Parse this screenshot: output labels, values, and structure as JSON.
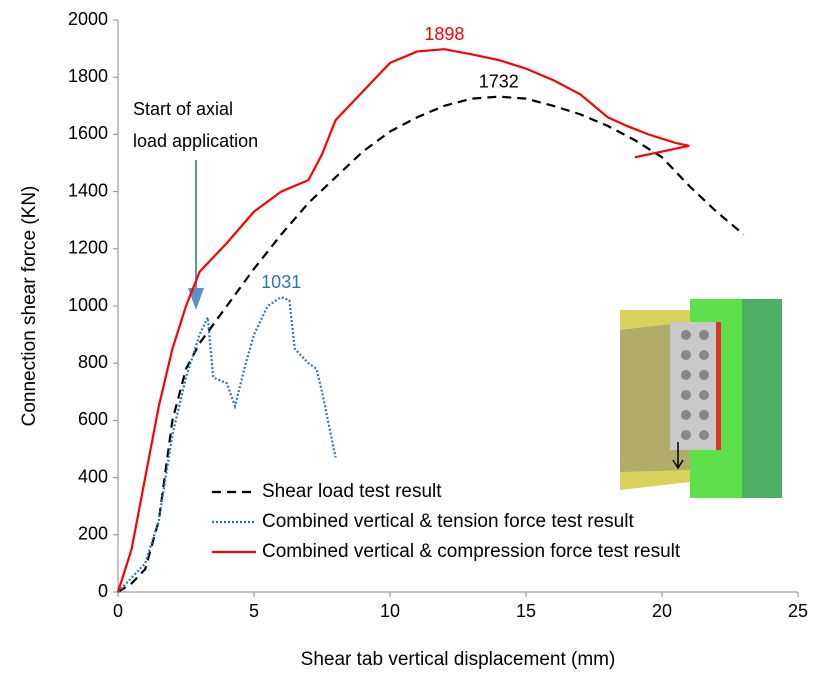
{
  "chart_data": {
    "type": "line",
    "x_label": "Shear tab vertical displacement (mm)",
    "y_label": "Connection shear force (KN)",
    "xlim": [
      0,
      25
    ],
    "xticks": [
      0,
      5,
      10,
      15,
      20,
      25
    ],
    "ylim": [
      0,
      2000
    ],
    "yticks": [
      0,
      200,
      400,
      600,
      800,
      1000,
      1200,
      1400,
      1600,
      1800,
      2000
    ],
    "grid": false,
    "note": [
      "Start of axial",
      "load application"
    ],
    "series": [
      {
        "name": "Shear load test result",
        "color": "#000000",
        "dash": "dashed",
        "peak_label": "1732",
        "x": [
          0,
          0.5,
          1,
          1.5,
          2,
          2.5,
          3,
          4,
          5,
          6,
          7,
          8,
          9,
          10,
          11,
          12,
          13,
          14,
          15,
          16,
          17,
          18,
          19,
          20,
          21,
          22,
          23
        ],
        "values": [
          0,
          30,
          80,
          250,
          600,
          780,
          870,
          1000,
          1130,
          1250,
          1360,
          1450,
          1540,
          1610,
          1660,
          1700,
          1725,
          1732,
          1725,
          1700,
          1670,
          1630,
          1580,
          1520,
          1420,
          1330,
          1250
        ]
      },
      {
        "name": "Combined vertical & tension force test result",
        "color": "#2e75b6",
        "dash": "dotted",
        "peak_label": "1031",
        "x": [
          0,
          0.5,
          1,
          1.5,
          2,
          2.5,
          3,
          3.3,
          3.5,
          4,
          4.3,
          4.7,
          5,
          5.5,
          6,
          6.3,
          6.5,
          7,
          7.3,
          7.5,
          8
        ],
        "values": [
          0,
          50,
          100,
          250,
          550,
          750,
          900,
          960,
          750,
          730,
          650,
          800,
          900,
          1000,
          1031,
          1020,
          850,
          800,
          780,
          700,
          470
        ]
      },
      {
        "name": "Combined vertical & compression force test result",
        "color": "#ff0000",
        "dash": "solid",
        "peak_label": "1898",
        "x": [
          0,
          0.5,
          1,
          1.5,
          2,
          2.5,
          3,
          4,
          5,
          6,
          7,
          7.5,
          8,
          9,
          10,
          11,
          12,
          13,
          14,
          15,
          16,
          17,
          18,
          18.7,
          19.5,
          20.5,
          21,
          20.5,
          19
        ],
        "values": [
          0,
          150,
          400,
          650,
          850,
          1000,
          1120,
          1220,
          1330,
          1400,
          1440,
          1530,
          1650,
          1750,
          1850,
          1890,
          1898,
          1880,
          1860,
          1830,
          1790,
          1740,
          1660,
          1630,
          1600,
          1570,
          1560,
          1550,
          1520
        ]
      }
    ]
  }
}
